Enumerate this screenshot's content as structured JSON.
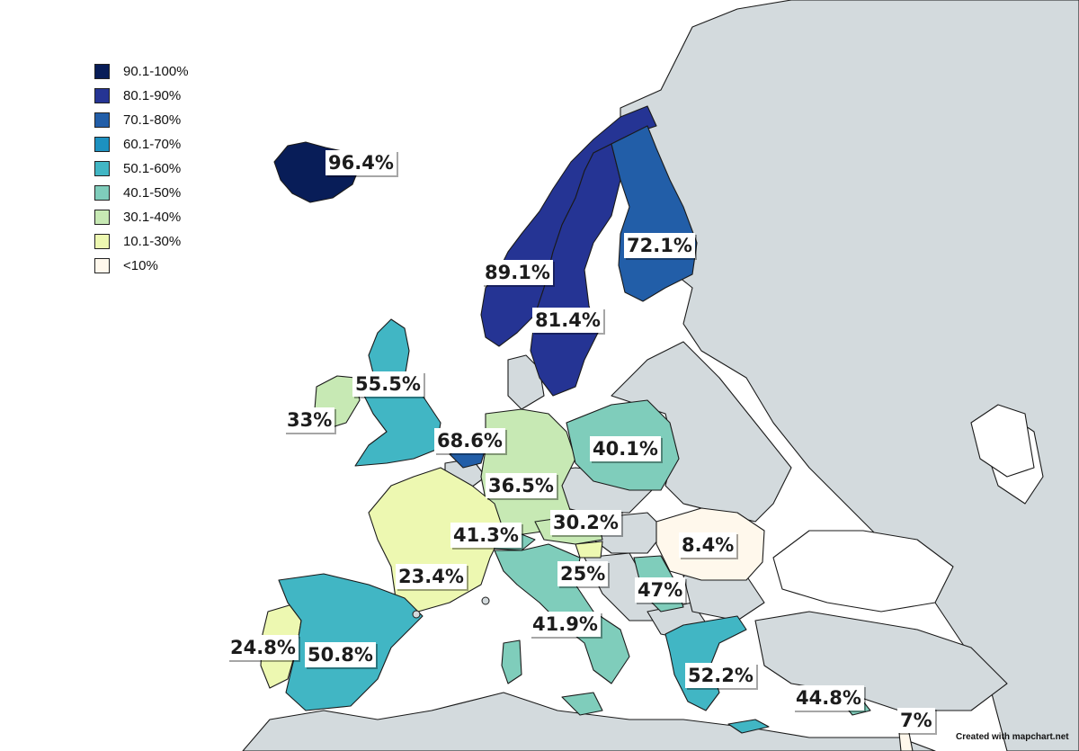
{
  "legend": [
    {
      "label": "90.1-100%",
      "color": "#081d58"
    },
    {
      "label": "80.1-90%",
      "color": "#253494"
    },
    {
      "label": "70.1-80%",
      "color": "#225ea8"
    },
    {
      "label": "60.1-70%",
      "color": "#1d91c0"
    },
    {
      "label": "50.1-60%",
      "color": "#41b6c4"
    },
    {
      "label": "40.1-50%",
      "color": "#7fcdbb"
    },
    {
      "label": "30.1-40%",
      "color": "#c7e9b4"
    },
    {
      "label": "10.1-30%",
      "color": "#edf8b1"
    },
    {
      "label": "<10%",
      "color": "#fff8ec"
    }
  ],
  "colors": {
    "other_land": "#d3dadd",
    "no_data": "#ffffff",
    "sea": "#ffffff"
  },
  "labels": {
    "iceland": "96.4%",
    "norway": "89.1%",
    "sweden": "81.4%",
    "finland": "72.1%",
    "uk": "55.5%",
    "ireland": "33%",
    "netherlands": "68.6%",
    "germany": "36.5%",
    "poland": "40.1%",
    "switzerland": "41.3%",
    "austria": "30.2%",
    "france": "23.4%",
    "slovenia": "25%",
    "romania": "8.4%",
    "serbia": "47%",
    "italy": "41.9%",
    "portugal": "24.8%",
    "spain": "50.8%",
    "greece": "52.2%",
    "cyprus": "44.8%",
    "israel": "7%"
  },
  "credit": "Created with mapchart.net"
}
